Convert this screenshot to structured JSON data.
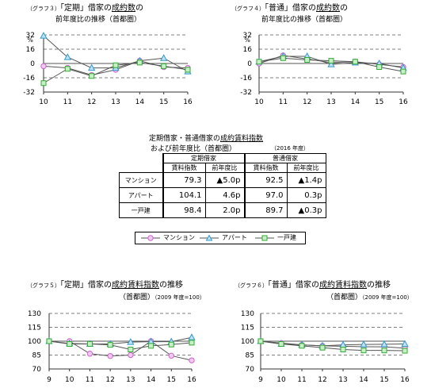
{
  "graph3": {
    "prefix": "（グラフ３）",
    "title_a": "「定期」借家の",
    "title_b": "成約数",
    "title_c": "の",
    "title_line2": "前年度比の推移（首都圏）"
  },
  "graph4": {
    "prefix": "（グラフ４）",
    "title_a": "「普通」借家の",
    "title_b": "成約数",
    "title_c": "の",
    "title_line2": "前年度比の推移（首都圏）"
  },
  "graph5": {
    "prefix": "（グラフ５）",
    "title_a": "「定期」借家の",
    "title_b": "成約賃料指数",
    "title_c": "の推移",
    "title_line2": "（首都圏）",
    "title_line2b": "（2009 年度=100）"
  },
  "graph6": {
    "prefix": "（グラフ６）",
    "title_a": "「普通」借家の",
    "title_b": "成約賃料指数",
    "title_c": "の推移",
    "title_line2": "（首都圏）",
    "title_line2b": "（2009 年度=100）"
  },
  "table": {
    "title_line1_a": "定期借家・普通借家の",
    "title_line1_b": "成約賃料指数",
    "title_line2": "および前年度比（首都圏）",
    "year_note": "（2016 年度）",
    "group_headers": [
      "定期借家",
      "普通借家"
    ],
    "sub_headers": [
      "賃料指数",
      "前年度比",
      "賃料指数",
      "前年度比"
    ],
    "rows": [
      {
        "label": "マンション",
        "c1": "79.3",
        "c2": "▲5.0p",
        "c3": "92.5",
        "c4": "▲1.4p"
      },
      {
        "label": "アパート",
        "c1": "104.1",
        "c2": "4.6p",
        "c3": "97.0",
        "c4": "0.3p"
      },
      {
        "label": "一戸建",
        "c1": "98.4",
        "c2": "2.0p",
        "c3": "89.7",
        "c4": "▲0.3p"
      }
    ]
  },
  "legend": {
    "items": [
      "マンション",
      "アパート",
      "一戸建"
    ]
  },
  "colors": {
    "mansion": "#cc66cc",
    "apartment": "#3399cc",
    "house": "#33aa33",
    "line": "#555555"
  },
  "chart_data": [
    {
      "id": "graph3",
      "type": "line",
      "ylabel": "%",
      "categories": [
        "10",
        "11",
        "12",
        "13",
        "14",
        "15",
        "16"
      ],
      "yticks": [
        32,
        16,
        0,
        -16,
        -32
      ],
      "ylim": [
        -32,
        32
      ],
      "series": [
        {
          "name": "マンション",
          "values": [
            -3,
            -5,
            -13,
            -7,
            3,
            -4,
            -5
          ]
        },
        {
          "name": "アパート",
          "values": [
            31,
            7,
            -5,
            -5,
            3,
            6,
            -9
          ]
        },
        {
          "name": "一戸建",
          "values": [
            -22,
            -6,
            -14,
            -2,
            1,
            -3,
            -7
          ]
        }
      ]
    },
    {
      "id": "graph4",
      "type": "line",
      "ylabel": "%",
      "categories": [
        "10",
        "11",
        "12",
        "13",
        "14",
        "15",
        "16"
      ],
      "yticks": [
        32,
        16,
        0,
        -16,
        -32
      ],
      "ylim": [
        -32,
        32
      ],
      "series": [
        {
          "name": "マンション",
          "values": [
            0,
            9,
            5,
            1,
            2,
            -1,
            -4
          ]
        },
        {
          "name": "アパート",
          "values": [
            2,
            8,
            8,
            -1,
            1,
            0,
            -5
          ]
        },
        {
          "name": "一戸建",
          "values": [
            2,
            6,
            4,
            3,
            2,
            -4,
            -9
          ]
        }
      ]
    },
    {
      "id": "graph5",
      "type": "line",
      "categories": [
        "9",
        "10",
        "11",
        "12",
        "13",
        "14",
        "15",
        "16"
      ],
      "yticks": [
        130,
        115,
        100,
        85,
        70
      ],
      "ylim": [
        70,
        130
      ],
      "series": [
        {
          "name": "マンション",
          "values": [
            100,
            100,
            86.5,
            84,
            85,
            100,
            84.3,
            79.3
          ]
        },
        {
          "name": "アパート",
          "values": [
            100,
            97.5,
            97,
            97,
            99,
            99.5,
            99.5,
            104.1
          ]
        },
        {
          "name": "一戸建",
          "values": [
            100,
            97,
            97,
            96,
            91,
            95,
            96.4,
            98.4
          ]
        }
      ]
    },
    {
      "id": "graph6",
      "type": "line",
      "categories": [
        "9",
        "10",
        "11",
        "12",
        "13",
        "14",
        "15",
        "16"
      ],
      "yticks": [
        130,
        115,
        100,
        85,
        70
      ],
      "ylim": [
        70,
        130
      ],
      "series": [
        {
          "name": "マンション",
          "values": [
            100,
            98,
            96,
            95,
            94.5,
            94,
            93.9,
            92.5
          ]
        },
        {
          "name": "アパート",
          "values": [
            100,
            97,
            96,
            95,
            96,
            96.5,
            96.7,
            97.0
          ]
        },
        {
          "name": "一戸建",
          "values": [
            100,
            97,
            95,
            93,
            91,
            90,
            90.0,
            89.7
          ]
        }
      ]
    }
  ]
}
